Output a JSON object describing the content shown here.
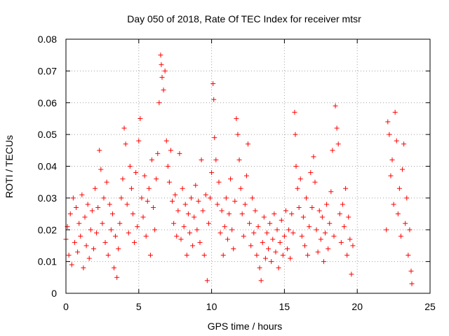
{
  "chart_data": {
    "type": "scatter",
    "title": "Day 050 of 2018, Rate Of TEC Index for receiver mtsr",
    "xlabel": "GPS time / hours",
    "ylabel": "ROTI / TECUs",
    "xlim": [
      0,
      25
    ],
    "ylim": [
      0,
      0.08
    ],
    "x_ticks": [
      0,
      5,
      10,
      15,
      20,
      25
    ],
    "y_ticks": [
      0,
      0.01,
      0.02,
      0.03,
      0.04,
      0.05,
      0.06,
      0.07,
      0.08
    ],
    "x_tick_labels": [
      "0",
      "5",
      "10",
      "15",
      "20",
      "25"
    ],
    "y_tick_labels": [
      "0",
      "0.01",
      "0.02",
      "0.03",
      "0.04",
      "0.05",
      "0.06",
      "0.07",
      "0.08"
    ],
    "grid": true,
    "marker": "+",
    "color": "#ff0000",
    "series": [
      {
        "name": "ROTI",
        "points": [
          [
            0.0,
            0.017
          ],
          [
            0.1,
            0.021
          ],
          [
            0.2,
            0.012
          ],
          [
            0.3,
            0.025
          ],
          [
            0.4,
            0.009
          ],
          [
            0.5,
            0.03
          ],
          [
            0.6,
            0.016
          ],
          [
            0.7,
            0.027
          ],
          [
            0.8,
            0.013
          ],
          [
            0.9,
            0.022
          ],
          [
            1.0,
            0.018
          ],
          [
            1.1,
            0.031
          ],
          [
            1.2,
            0.008
          ],
          [
            1.3,
            0.024
          ],
          [
            1.4,
            0.015
          ],
          [
            1.5,
            0.028
          ],
          [
            1.6,
            0.011
          ],
          [
            1.7,
            0.02
          ],
          [
            1.8,
            0.026
          ],
          [
            1.9,
            0.014
          ],
          [
            2.0,
            0.033
          ],
          [
            2.1,
            0.019
          ],
          [
            2.2,
            0.027
          ],
          [
            2.3,
            0.045
          ],
          [
            2.4,
            0.039
          ],
          [
            2.5,
            0.022
          ],
          [
            2.6,
            0.03
          ],
          [
            2.7,
            0.016
          ],
          [
            2.8,
            0.035
          ],
          [
            2.9,
            0.012
          ],
          [
            3.0,
            0.028
          ],
          [
            3.1,
            0.02
          ],
          [
            3.2,
            0.025
          ],
          [
            3.3,
            0.008
          ],
          [
            3.4,
            0.018
          ],
          [
            3.5,
            0.005
          ],
          [
            3.6,
            0.014
          ],
          [
            3.7,
            0.022
          ],
          [
            3.8,
            0.03
          ],
          [
            3.9,
            0.036
          ],
          [
            4.0,
            0.052
          ],
          [
            4.1,
            0.047
          ],
          [
            4.2,
            0.028
          ],
          [
            4.3,
            0.019
          ],
          [
            4.4,
            0.04
          ],
          [
            4.5,
            0.033
          ],
          [
            4.6,
            0.025
          ],
          [
            4.7,
            0.016
          ],
          [
            4.8,
            0.038
          ],
          [
            4.9,
            0.021
          ],
          [
            5.0,
            0.048
          ],
          [
            5.1,
            0.055
          ],
          [
            5.2,
            0.03
          ],
          [
            5.3,
            0.024
          ],
          [
            5.4,
            0.037
          ],
          [
            5.5,
            0.018
          ],
          [
            5.6,
            0.029
          ],
          [
            5.7,
            0.033
          ],
          [
            5.8,
            0.012
          ],
          [
            5.9,
            0.042
          ],
          [
            6.0,
            0.027
          ],
          [
            6.1,
            0.02
          ],
          [
            6.2,
            0.036
          ],
          [
            6.3,
            0.044
          ],
          [
            6.4,
            0.06
          ],
          [
            6.5,
            0.075
          ],
          [
            6.55,
            0.072
          ],
          [
            6.6,
            0.068
          ],
          [
            6.7,
            0.064
          ],
          [
            6.8,
            0.07
          ],
          [
            6.9,
            0.048
          ],
          [
            7.0,
            0.04
          ],
          [
            7.1,
            0.035
          ],
          [
            7.2,
            0.045
          ],
          [
            7.3,
            0.029
          ],
          [
            7.4,
            0.022
          ],
          [
            7.5,
            0.031
          ],
          [
            7.6,
            0.018
          ],
          [
            7.7,
            0.026
          ],
          [
            7.8,
            0.044
          ],
          [
            7.9,
            0.017
          ],
          [
            8.0,
            0.033
          ],
          [
            8.1,
            0.021
          ],
          [
            8.2,
            0.028
          ],
          [
            8.3,
            0.012
          ],
          [
            8.4,
            0.025
          ],
          [
            8.5,
            0.019
          ],
          [
            8.6,
            0.03
          ],
          [
            8.7,
            0.015
          ],
          [
            8.8,
            0.024
          ],
          [
            8.9,
            0.034
          ],
          [
            9.0,
            0.02
          ],
          [
            9.1,
            0.029
          ],
          [
            9.2,
            0.016
          ],
          [
            9.3,
            0.042
          ],
          [
            9.4,
            0.026
          ],
          [
            9.5,
            0.012
          ],
          [
            9.6,
            0.031
          ],
          [
            9.7,
            0.004
          ],
          [
            9.8,
            0.022
          ],
          [
            9.9,
            0.03
          ],
          [
            10.0,
            0.038
          ],
          [
            10.1,
            0.066
          ],
          [
            10.15,
            0.061
          ],
          [
            10.2,
            0.049
          ],
          [
            10.3,
            0.042
          ],
          [
            10.4,
            0.028
          ],
          [
            10.5,
            0.035
          ],
          [
            10.6,
            0.019
          ],
          [
            10.7,
            0.026
          ],
          [
            10.8,
            0.012
          ],
          [
            10.9,
            0.021
          ],
          [
            11.0,
            0.03
          ],
          [
            11.1,
            0.017
          ],
          [
            11.2,
            0.025
          ],
          [
            11.3,
            0.036
          ],
          [
            11.4,
            0.02
          ],
          [
            11.5,
            0.014
          ],
          [
            11.6,
            0.029
          ],
          [
            11.7,
            0.055
          ],
          [
            11.8,
            0.05
          ],
          [
            11.9,
            0.042
          ],
          [
            12.0,
            0.033
          ],
          [
            12.1,
            0.025
          ],
          [
            12.2,
            0.018
          ],
          [
            12.3,
            0.028
          ],
          [
            12.4,
            0.037
          ],
          [
            12.5,
            0.047
          ],
          [
            12.6,
            0.022
          ],
          [
            12.7,
            0.015
          ],
          [
            12.8,
            0.03
          ],
          [
            12.9,
            0.019
          ],
          [
            13.0,
            0.026
          ],
          [
            13.1,
            0.012
          ],
          [
            13.2,
            0.021
          ],
          [
            13.3,
            0.008
          ],
          [
            13.4,
            0.004
          ],
          [
            13.5,
            0.016
          ],
          [
            13.6,
            0.024
          ],
          [
            13.7,
            0.011
          ],
          [
            13.8,
            0.019
          ],
          [
            13.9,
            0.014
          ],
          [
            14.0,
            0.022
          ],
          [
            14.1,
            0.01
          ],
          [
            14.2,
            0.017
          ],
          [
            14.3,
            0.025
          ],
          [
            14.4,
            0.013
          ],
          [
            14.5,
            0.02
          ],
          [
            14.6,
            0.008
          ],
          [
            14.7,
            0.016
          ],
          [
            14.8,
            0.023
          ],
          [
            14.9,
            0.012
          ],
          [
            15.0,
            0.018
          ],
          [
            15.1,
            0.026
          ],
          [
            15.2,
            0.014
          ],
          [
            15.3,
            0.02
          ],
          [
            15.4,
            0.011
          ],
          [
            15.5,
            0.025
          ],
          [
            15.6,
            0.019
          ],
          [
            15.7,
            0.057
          ],
          [
            15.75,
            0.05
          ],
          [
            15.8,
            0.04
          ],
          [
            15.9,
            0.033
          ],
          [
            16.0,
            0.027
          ],
          [
            16.1,
            0.036
          ],
          [
            16.2,
            0.018
          ],
          [
            16.3,
            0.024
          ],
          [
            16.4,
            0.015
          ],
          [
            16.5,
            0.03
          ],
          [
            16.6,
            0.012
          ],
          [
            16.7,
            0.021
          ],
          [
            16.8,
            0.038
          ],
          [
            16.9,
            0.027
          ],
          [
            17.0,
            0.043
          ],
          [
            17.1,
            0.035
          ],
          [
            17.2,
            0.02
          ],
          [
            17.3,
            0.013
          ],
          [
            17.4,
            0.026
          ],
          [
            17.5,
            0.017
          ],
          [
            17.6,
            0.024
          ],
          [
            17.7,
            0.01
          ],
          [
            17.8,
            0.019
          ],
          [
            17.9,
            0.028
          ],
          [
            18.0,
            0.014
          ],
          [
            18.1,
            0.022
          ],
          [
            18.2,
            0.032
          ],
          [
            18.3,
            0.045
          ],
          [
            18.4,
            0.018
          ],
          [
            18.5,
            0.059
          ],
          [
            18.6,
            0.052
          ],
          [
            18.7,
            0.047
          ],
          [
            18.8,
            0.025
          ],
          [
            18.9,
            0.016
          ],
          [
            19.0,
            0.028
          ],
          [
            19.1,
            0.021
          ],
          [
            19.2,
            0.033
          ],
          [
            19.3,
            0.012
          ],
          [
            19.4,
            0.024
          ],
          [
            19.5,
            0.017
          ],
          [
            19.6,
            0.006
          ],
          [
            19.7,
            0.015
          ],
          [
            22.0,
            0.02
          ],
          [
            22.1,
            0.054
          ],
          [
            22.2,
            0.05
          ],
          [
            22.3,
            0.037
          ],
          [
            22.4,
            0.042
          ],
          [
            22.5,
            0.028
          ],
          [
            22.6,
            0.057
          ],
          [
            22.7,
            0.048
          ],
          [
            22.8,
            0.025
          ],
          [
            22.9,
            0.033
          ],
          [
            23.0,
            0.018
          ],
          [
            23.1,
            0.039
          ],
          [
            23.2,
            0.047
          ],
          [
            23.3,
            0.022
          ],
          [
            23.4,
            0.03
          ],
          [
            23.5,
            0.012
          ],
          [
            23.6,
            0.02
          ],
          [
            23.7,
            0.007
          ],
          [
            23.75,
            0.003
          ]
        ]
      }
    ]
  }
}
